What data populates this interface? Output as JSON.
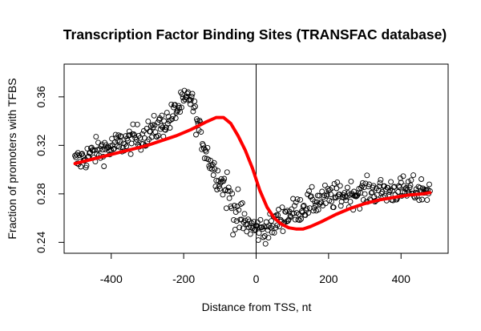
{
  "chart_data": {
    "type": "scatter",
    "title": "Transcription Factor Binding Sites (TRANSFAC database)",
    "xlabel": "Distance from TSS, nt",
    "ylabel": "Fraction of promoters with TFBS",
    "xlim": [
      -530,
      530
    ],
    "ylim": [
      0.231,
      0.387
    ],
    "x_ticks": [
      -400,
      -200,
      0,
      200,
      400
    ],
    "y_ticks": [
      0.24,
      0.28,
      0.32,
      0.36
    ],
    "reference_line_x": 0,
    "marker": "open-circle",
    "point_step": 2,
    "x_range": [
      -500,
      480
    ],
    "series": [
      {
        "role": "observed-points",
        "x_start": -500,
        "x_step": 20,
        "y": [
          0.306,
          0.309,
          0.312,
          0.315,
          0.317,
          0.318,
          0.321,
          0.323,
          0.325,
          0.327,
          0.33,
          0.333,
          0.337,
          0.341,
          0.349,
          0.355,
          0.36,
          0.335,
          0.317,
          0.302,
          0.291,
          0.283,
          0.266,
          0.258,
          0.254,
          0.251,
          0.251,
          0.252,
          0.258,
          0.262,
          0.265,
          0.268,
          0.271,
          0.273,
          0.275,
          0.277,
          0.278,
          0.279,
          0.28,
          0.281,
          0.281,
          0.282,
          0.282,
          0.282,
          0.283,
          0.283,
          0.283,
          0.283,
          0.283,
          0.283
        ]
      },
      {
        "role": "smooth-fit",
        "color": "#ff0000",
        "x": [
          -500,
          -460,
          -420,
          -380,
          -340,
          -300,
          -260,
          -220,
          -180,
          -140,
          -110,
          -90,
          -70,
          -50,
          -30,
          -10,
          0,
          10,
          30,
          50,
          70,
          90,
          110,
          130,
          150,
          180,
          220,
          260,
          300,
          340,
          380,
          420,
          460,
          480
        ],
        "y": [
          0.305,
          0.308,
          0.311,
          0.314,
          0.317,
          0.32,
          0.324,
          0.328,
          0.333,
          0.339,
          0.343,
          0.343,
          0.338,
          0.328,
          0.316,
          0.301,
          0.292,
          0.283,
          0.269,
          0.26,
          0.255,
          0.252,
          0.251,
          0.251,
          0.253,
          0.257,
          0.263,
          0.268,
          0.272,
          0.275,
          0.277,
          0.279,
          0.28,
          0.281
        ]
      }
    ],
    "grid": false,
    "legend": "none"
  }
}
